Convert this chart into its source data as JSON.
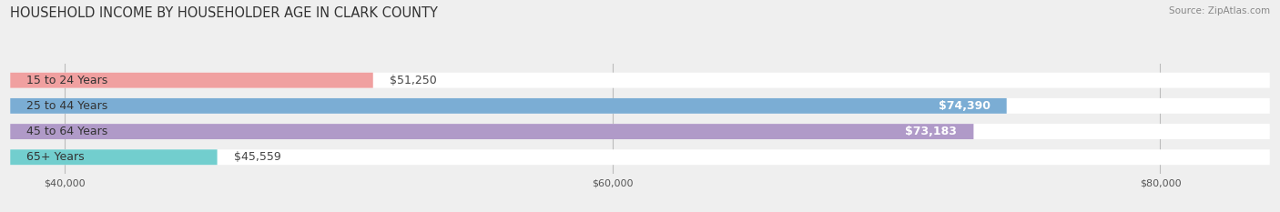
{
  "title": "HOUSEHOLD INCOME BY HOUSEHOLDER AGE IN CLARK COUNTY",
  "source": "Source: ZipAtlas.com",
  "categories": [
    "15 to 24 Years",
    "25 to 44 Years",
    "45 to 64 Years",
    "65+ Years"
  ],
  "values": [
    51250,
    74390,
    73183,
    45559
  ],
  "bar_colors": [
    "#f0a0a0",
    "#7badd4",
    "#b09ac8",
    "#72cece"
  ],
  "label_values": [
    "$51,250",
    "$74,390",
    "$73,183",
    "$45,559"
  ],
  "x_min": 38000,
  "x_max": 84000,
  "x_ticks": [
    40000,
    60000,
    80000
  ],
  "x_tick_labels": [
    "$40,000",
    "$60,000",
    "$80,000"
  ],
  "background_color": "#efefef",
  "title_fontsize": 10.5,
  "source_fontsize": 7.5
}
